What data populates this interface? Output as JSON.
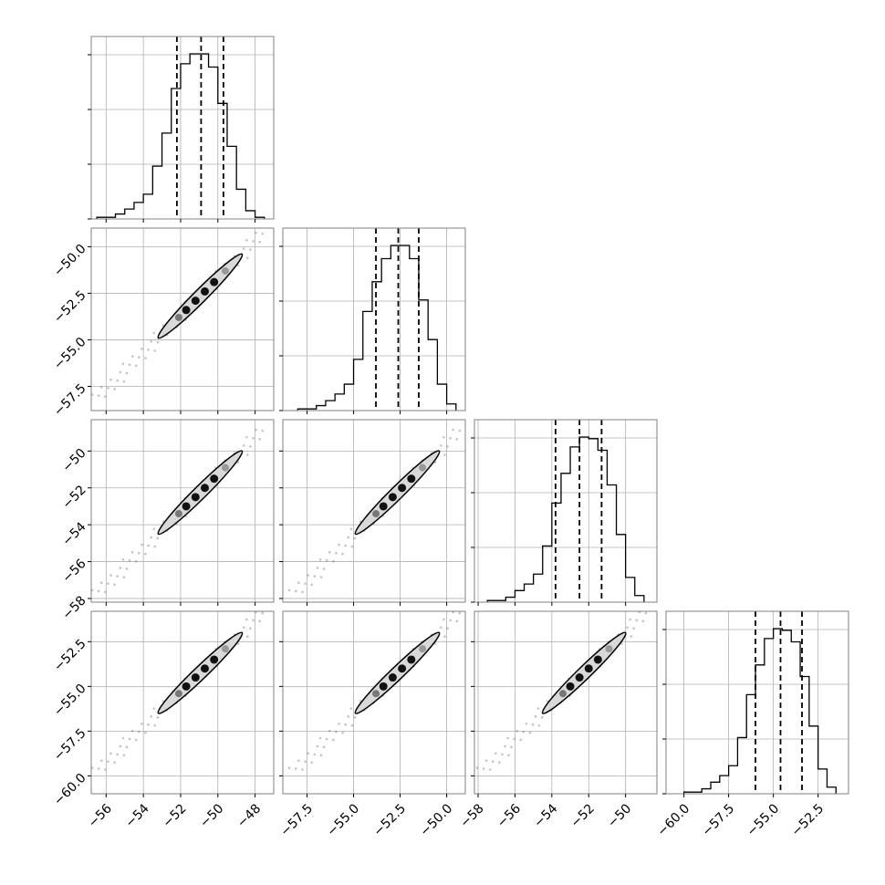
{
  "chart_data": {
    "type": "corner",
    "n_params": 4,
    "grid": true,
    "colors": {
      "line": "#000000",
      "grid": "#b0b0b0",
      "spine": "#808080",
      "fill": "#d9d9d9",
      "points": "#555555"
    },
    "axes_ranges": [
      [
        -56.8,
        -47.0
      ],
      [
        -58.8,
        -49.0
      ],
      [
        -58.2,
        -48.3
      ],
      [
        -61.0,
        -50.8
      ]
    ],
    "bottom_tick_labels": [
      [
        "−56",
        "−54",
        "−52",
        "−50",
        "−48"
      ],
      [
        "−57.5",
        "−55.0",
        "−52.5",
        "−50.0"
      ],
      [
        "−58",
        "−56",
        "−54",
        "−52",
        "−50"
      ],
      [
        "−60.0",
        "−57.5",
        "−55.0",
        "−52.5"
      ]
    ],
    "left_tick_labels": [
      [],
      [
        "−50.0",
        "−52.5",
        "−55.0",
        "−57.5"
      ],
      [
        "−50",
        "−52",
        "−54",
        "−56",
        "−58"
      ],
      [
        "−52.5",
        "−55.0",
        "−57.5",
        "−60.0"
      ]
    ],
    "histograms": [
      {
        "edges": [
          -56.5,
          -56.0,
          -55.5,
          -55.0,
          -54.5,
          -54.0,
          -53.5,
          -53.0,
          -52.5,
          -52.0,
          -51.5,
          -51.0,
          -50.5,
          -50.0,
          -49.5,
          -49.0,
          -48.5,
          -48.0,
          -47.5
        ],
        "counts": [
          1,
          1,
          3,
          6,
          10,
          15,
          32,
          52,
          79,
          94,
          100,
          100,
          92,
          70,
          44,
          18,
          5,
          1
        ],
        "quantiles": [
          -52.2,
          -50.9,
          -49.7
        ]
      },
      {
        "edges": [
          -58.0,
          -57.5,
          -57.0,
          -56.5,
          -56.0,
          -55.5,
          -55.0,
          -54.5,
          -54.0,
          -53.5,
          -53.0,
          -52.5,
          -52.0,
          -51.5,
          -51.0,
          -50.5,
          -50.0,
          -49.5
        ],
        "counts": [
          1,
          1,
          3,
          6,
          10,
          16,
          31,
          60,
          78,
          92,
          100,
          100,
          92,
          67,
          43,
          16,
          4
        ],
        "quantiles": [
          -53.8,
          -52.6,
          -51.5
        ]
      },
      {
        "edges": [
          -57.5,
          -57.0,
          -56.5,
          -56.0,
          -55.5,
          -55.0,
          -54.5,
          -54.0,
          -53.5,
          -53.0,
          -52.5,
          -52.0,
          -51.5,
          -51.0,
          -50.5,
          -50.0,
          -49.5,
          -49.0
        ],
        "counts": [
          1,
          1,
          3,
          7,
          11,
          17,
          34,
          60,
          78,
          94,
          100,
          99,
          92,
          71,
          41,
          15,
          4
        ],
        "quantiles": [
          -53.8,
          -52.5,
          -51.3
        ]
      },
      {
        "edges": [
          -60.0,
          -59.5,
          -59.0,
          -58.5,
          -58.0,
          -57.5,
          -57.0,
          -56.5,
          -56.0,
          -55.5,
          -55.0,
          -54.5,
          -54.0,
          -53.5,
          -53.0,
          -52.5,
          -52.0,
          -51.5
        ],
        "counts": [
          1,
          1,
          3,
          7,
          11,
          17,
          34,
          60,
          78,
          94,
          100,
          99,
          92,
          71,
          41,
          15,
          4
        ],
        "quantiles": [
          -56.0,
          -54.6,
          -53.4
        ]
      }
    ],
    "scatter_offsets": [
      [
        0,
        0
      ],
      [
        0,
        -1.7
      ],
      [
        0,
        -1.3
      ],
      [
        0,
        -3.3
      ]
    ],
    "scatter_range_param0": [
      -56.5,
      -47.6
    ],
    "ellipse_half_width_param0": [
      -53.2,
      -48.7
    ],
    "contour_level_points_param0": [
      -52.1,
      -51.7,
      -51.2,
      -50.7,
      -50.2,
      -49.6
    ]
  }
}
